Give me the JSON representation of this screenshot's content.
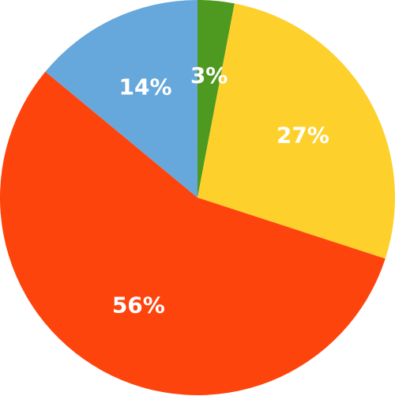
{
  "chart_data": {
    "type": "pie",
    "title": "",
    "start_angle_deg": 0,
    "direction": "clockwise",
    "slices": [
      {
        "value": 3,
        "label": "3%",
        "color": "#4e9a21"
      },
      {
        "value": 27,
        "label": "27%",
        "color": "#fed02b"
      },
      {
        "value": 56,
        "label": "56%",
        "color": "#fe440d"
      },
      {
        "value": 14,
        "label": "14%",
        "color": "#66a8db"
      }
    ]
  }
}
